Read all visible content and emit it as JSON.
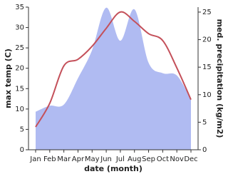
{
  "chart_data": {
    "type": "line",
    "xlabel": "date (month)",
    "ylabel": "max temp (C)",
    "y2label": "med. precipitation (kg/m2)",
    "categories": [
      "Jan",
      "Feb",
      "Mar",
      "Apr",
      "May",
      "Jun",
      "Jul",
      "Aug",
      "Sep",
      "Oct",
      "Nov",
      "Dec"
    ],
    "series": [
      {
        "name": "med. precipitation (kg/m2)",
        "kind": "area",
        "axis": "y2",
        "color": "#b0bbf2",
        "values": [
          6.9,
          8.0,
          8.2,
          13.0,
          18.1,
          25.8,
          19.8,
          25.5,
          15.8,
          13.9,
          13.5,
          9.1
        ]
      },
      {
        "name": "max temp (C)",
        "kind": "line",
        "color": "#c4505a",
        "values": [
          5.6,
          11.4,
          20.6,
          22.2,
          25.4,
          29.8,
          33.8,
          31.5,
          28.5,
          26.8,
          20.1,
          12.3
        ]
      }
    ],
    "ylim": [
      0,
      35
    ],
    "yticks": [
      0,
      5,
      10,
      15,
      20,
      25,
      30,
      35
    ],
    "y2lim": [
      0,
      25.9
    ],
    "y2ticks": [
      0,
      5,
      10,
      15,
      20,
      25
    ]
  }
}
